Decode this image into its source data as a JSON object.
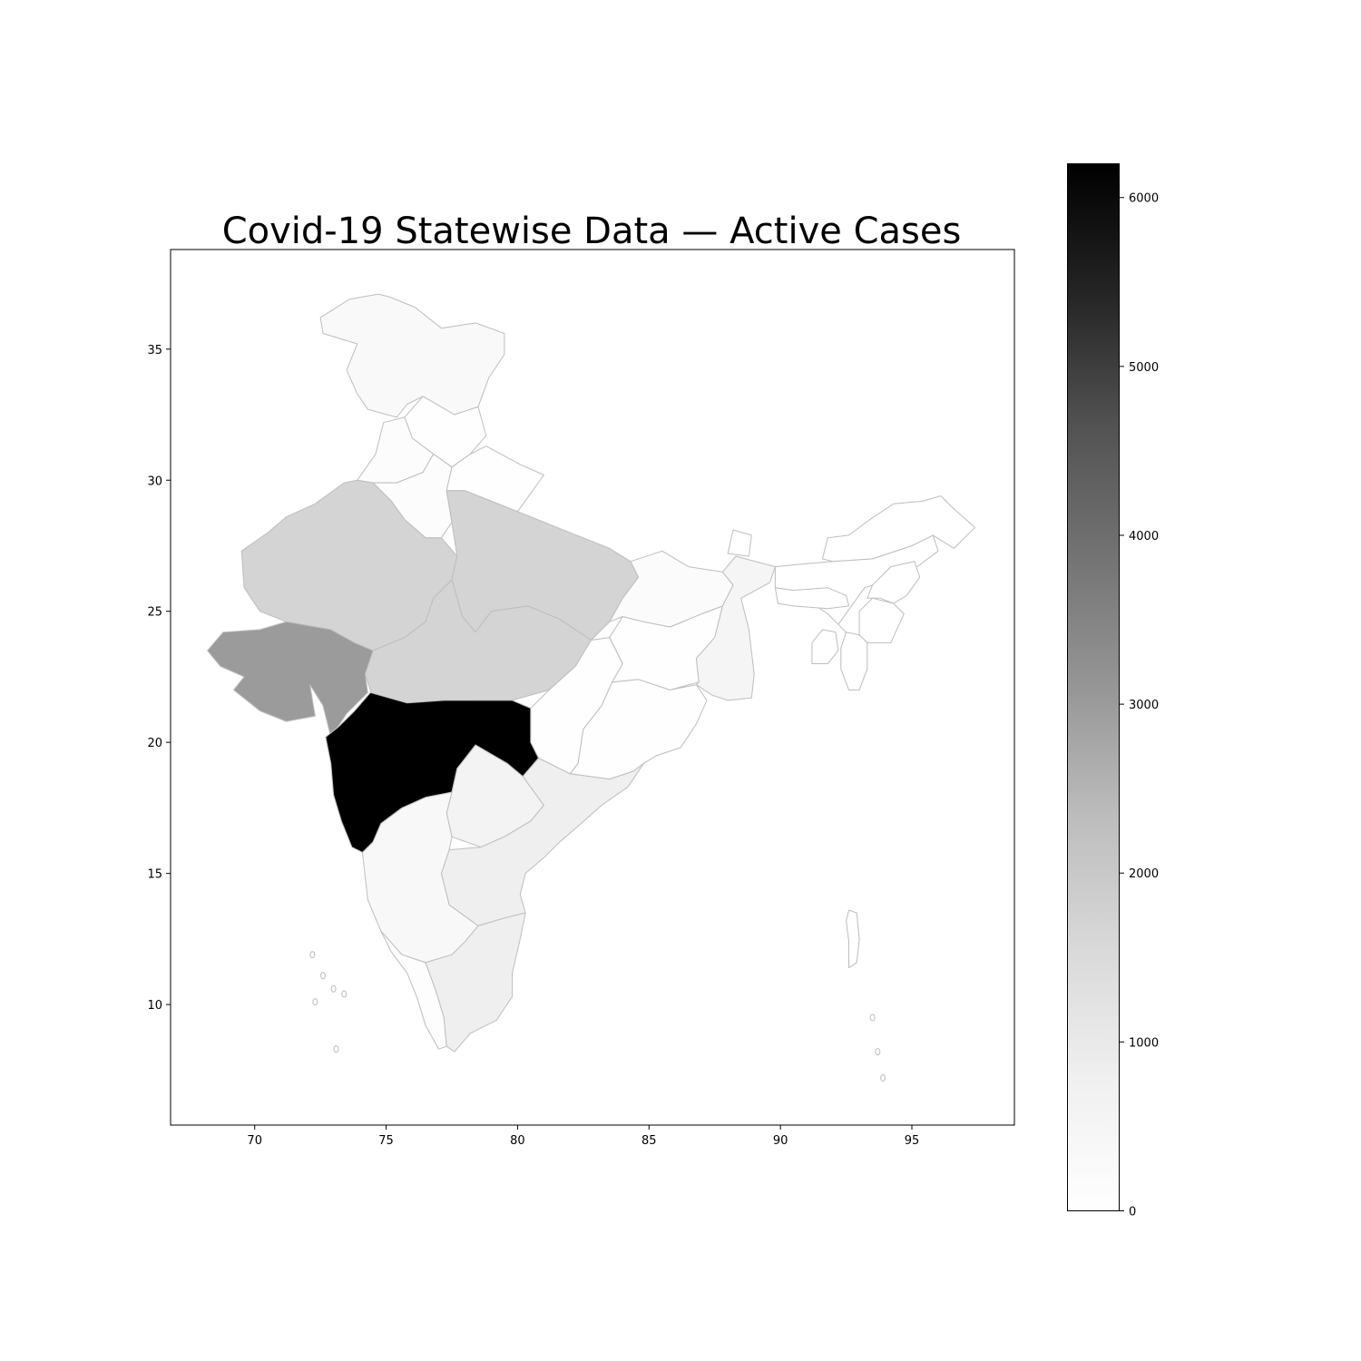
{
  "chart_data": {
    "type": "choropleth",
    "title": "Covid-19 Statewise Data — Active Cases",
    "metric": "Active Cases",
    "colormap": "Greys",
    "xlim": [
      66.8,
      98.9
    ],
    "ylim": [
      5.4,
      38.8
    ],
    "x_ticks": [
      70,
      75,
      80,
      85,
      90,
      95
    ],
    "y_ticks": [
      10,
      15,
      20,
      25,
      30,
      35
    ],
    "colorbar": {
      "min": 0,
      "max": 6200,
      "ticks": [
        0,
        1000,
        2000,
        3000,
        4000,
        5000,
        6000
      ]
    },
    "regions": [
      {
        "name": "Jammu & Kashmir",
        "value": 300
      },
      {
        "name": "Himachal Pradesh",
        "value": 30
      },
      {
        "name": "Punjab",
        "value": 150
      },
      {
        "name": "Haryana",
        "value": 150
      },
      {
        "name": "Uttarakhand",
        "value": 40
      },
      {
        "name": "Rajasthan",
        "value": 1700
      },
      {
        "name": "Uttar Pradesh",
        "value": 1700
      },
      {
        "name": "Madhya Pradesh",
        "value": 1700
      },
      {
        "name": "Gujarat",
        "value": 3000
      },
      {
        "name": "Maharashtra",
        "value": 6200
      },
      {
        "name": "Telangana",
        "value": 600
      },
      {
        "name": "Andhra Pradesh",
        "value": 800
      },
      {
        "name": "Karnataka",
        "value": 350
      },
      {
        "name": "Kerala",
        "value": 100
      },
      {
        "name": "Tamil Nadu",
        "value": 800
      },
      {
        "name": "Chhattisgarh",
        "value": 30
      },
      {
        "name": "Odisha",
        "value": 50
      },
      {
        "name": "Jharkhand",
        "value": 60
      },
      {
        "name": "Bihar",
        "value": 200
      },
      {
        "name": "West Bengal",
        "value": 500
      },
      {
        "name": "Sikkim",
        "value": 0
      },
      {
        "name": "Assam",
        "value": 20
      },
      {
        "name": "Arunachal Pradesh",
        "value": 0
      },
      {
        "name": "Nagaland",
        "value": 0
      },
      {
        "name": "Manipur",
        "value": 0
      },
      {
        "name": "Mizoram",
        "value": 0
      },
      {
        "name": "Tripura",
        "value": 0
      },
      {
        "name": "Meghalaya",
        "value": 10
      },
      {
        "name": "Andaman & Nicobar",
        "value": 10
      }
    ]
  }
}
